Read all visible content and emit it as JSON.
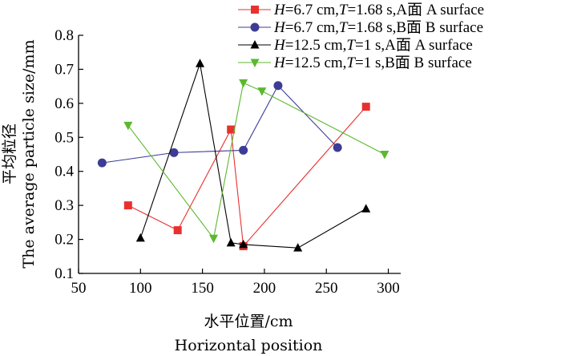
{
  "chart_data": {
    "type": "line",
    "xlabel_cn": "水平位置/cm",
    "xlabel_en": "Horizontal position",
    "ylabel_cn": "平均粒径",
    "ylabel_en": "The average particle size/mm",
    "xlim": [
      50,
      310
    ],
    "ylim": [
      0.1,
      0.8
    ],
    "xticks": [
      50,
      100,
      150,
      200,
      250,
      300
    ],
    "yticks": [
      0.1,
      0.2,
      0.3,
      0.4,
      0.5,
      0.6,
      0.7,
      0.8
    ],
    "xtick_labels": [
      "50",
      "100",
      "150",
      "200",
      "250",
      "300"
    ],
    "ytick_labels": [
      "0.1",
      "0.2",
      "0.3",
      "0.4",
      "0.5",
      "0.6",
      "0.7",
      "0.8"
    ],
    "legend_position": "top-right",
    "series": [
      {
        "legend_parts": [
          "H",
          "=6.7 cm,",
          "T",
          "=1.68 s,A面 A surface"
        ],
        "color": "#e8312f",
        "marker": "square",
        "x": [
          90,
          130,
          173,
          183,
          282
        ],
        "y": [
          0.3,
          0.227,
          0.523,
          0.18,
          0.59
        ]
      },
      {
        "legend_parts": [
          "H",
          "=6.7 cm,",
          "T",
          "=1.68 s,B面 B surface"
        ],
        "color": "#3c3c96",
        "marker": "circle",
        "x": [
          69,
          127,
          183,
          211,
          259
        ],
        "y": [
          0.425,
          0.455,
          0.462,
          0.652,
          0.47
        ]
      },
      {
        "legend_parts": [
          "H",
          "=12.5 cm,",
          "T",
          "=1 s,A面 A surface"
        ],
        "color": "#000000",
        "marker": "triangle-up",
        "x": [
          100,
          148,
          173,
          183,
          227,
          282
        ],
        "y": [
          0.204,
          0.717,
          0.19,
          0.185,
          0.175,
          0.29
        ]
      },
      {
        "legend_parts": [
          "H",
          "=12.5 cm,",
          "T",
          "=1 s,B面 B surface"
        ],
        "color": "#5cb82e",
        "marker": "triangle-down",
        "x": [
          90,
          159,
          183,
          198,
          297
        ],
        "y": [
          0.535,
          0.203,
          0.66,
          0.636,
          0.45
        ]
      }
    ]
  }
}
